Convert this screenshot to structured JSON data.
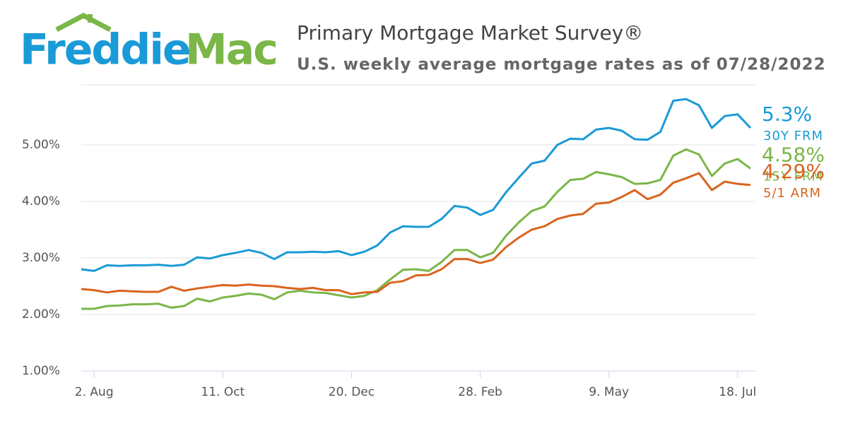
{
  "chart_data": {
    "type": "line",
    "logo": [
      "Freddie",
      "Mac"
    ],
    "title": "Primary Mortgage Market Survey®",
    "subtitle": "U.S. weekly average mortgage rates as of 07/28/2022",
    "categories": [
      null,
      "2. Aug",
      null,
      null,
      null,
      null,
      null,
      null,
      null,
      null,
      null,
      "11. Oct",
      null,
      null,
      null,
      null,
      null,
      null,
      null,
      null,
      null,
      "20. Dec",
      null,
      null,
      null,
      null,
      null,
      null,
      null,
      null,
      null,
      "28. Feb",
      null,
      null,
      null,
      null,
      null,
      null,
      null,
      null,
      null,
      "9. May",
      null,
      null,
      null,
      null,
      null,
      null,
      null,
      null,
      null,
      "18. Jul",
      null
    ],
    "ylim": [
      1,
      6
    ],
    "yticks": [
      {
        "value": 1,
        "label": "1.00%"
      },
      {
        "value": 2,
        "label": "2.00%"
      },
      {
        "value": 3,
        "label": "3.00%"
      },
      {
        "value": 4,
        "label": "4.00%"
      },
      {
        "value": 5,
        "label": "5.00%"
      }
    ],
    "grid": true,
    "series": [
      {
        "name": "30Y FRM",
        "color": "#1a9ad6",
        "values": [
          2.8,
          2.77,
          2.87,
          2.86,
          2.87,
          2.87,
          2.88,
          2.86,
          2.88,
          3.01,
          2.99,
          3.05,
          3.09,
          3.14,
          3.09,
          2.98,
          3.1,
          3.1,
          3.11,
          3.1,
          3.12,
          3.05,
          3.11,
          3.22,
          3.45,
          3.56,
          3.55,
          3.55,
          3.69,
          3.92,
          3.89,
          3.76,
          3.85,
          4.16,
          4.42,
          4.67,
          4.72,
          5.0,
          5.11,
          5.1,
          5.27,
          5.3,
          5.25,
          5.1,
          5.09,
          5.23,
          5.78,
          5.81,
          5.7,
          5.3,
          5.51,
          5.54,
          5.3
        ],
        "value_labels": [
          null,
          null,
          null,
          null,
          null,
          null,
          null,
          null,
          null,
          null,
          null,
          null,
          null,
          null,
          null,
          null,
          null,
          null,
          null,
          null,
          null,
          null,
          null,
          null,
          null,
          null,
          null,
          null,
          null,
          null,
          null,
          null,
          null,
          null,
          null,
          null,
          null,
          null,
          null,
          null,
          null,
          null,
          null,
          null,
          null,
          null,
          null,
          null,
          null,
          null,
          null,
          null,
          "5.3%"
        ]
      },
      {
        "name": "15Y FRM",
        "color": "#7ab648",
        "values": [
          2.1,
          2.1,
          2.15,
          2.16,
          2.18,
          2.18,
          2.19,
          2.12,
          2.15,
          2.28,
          2.23,
          2.3,
          2.33,
          2.37,
          2.35,
          2.27,
          2.39,
          2.42,
          2.39,
          2.38,
          2.34,
          2.3,
          2.33,
          2.43,
          2.62,
          2.79,
          2.8,
          2.77,
          2.93,
          3.14,
          3.14,
          3.01,
          3.09,
          3.39,
          3.63,
          3.83,
          3.91,
          4.17,
          4.38,
          4.4,
          4.52,
          4.48,
          4.43,
          4.31,
          4.32,
          4.38,
          4.81,
          4.92,
          4.83,
          4.45,
          4.67,
          4.75,
          4.58
        ],
        "value_labels": [
          null,
          null,
          null,
          null,
          null,
          null,
          null,
          null,
          null,
          null,
          null,
          null,
          null,
          null,
          null,
          null,
          null,
          null,
          null,
          null,
          null,
          null,
          null,
          null,
          null,
          null,
          null,
          null,
          null,
          null,
          null,
          null,
          null,
          null,
          null,
          null,
          null,
          null,
          null,
          null,
          null,
          null,
          null,
          null,
          null,
          null,
          null,
          null,
          null,
          null,
          null,
          null,
          "4.58%"
        ]
      },
      {
        "name": "5/1 ARM",
        "color": "#d9641e",
        "values": [
          2.45,
          2.43,
          2.39,
          2.42,
          2.41,
          2.4,
          2.4,
          2.49,
          2.42,
          2.46,
          2.49,
          2.52,
          2.51,
          2.53,
          2.51,
          2.5,
          2.47,
          2.45,
          2.47,
          2.43,
          2.43,
          2.36,
          2.39,
          2.4,
          2.56,
          2.59,
          2.69,
          2.7,
          2.8,
          2.98,
          2.98,
          2.91,
          2.97,
          3.19,
          3.36,
          3.5,
          3.56,
          3.69,
          3.75,
          3.78,
          3.96,
          3.98,
          4.08,
          4.2,
          4.04,
          4.12,
          4.33,
          4.41,
          4.5,
          4.2,
          4.35,
          4.31,
          4.29
        ],
        "value_labels": [
          null,
          null,
          null,
          null,
          null,
          null,
          null,
          null,
          null,
          null,
          null,
          null,
          null,
          null,
          null,
          null,
          null,
          null,
          null,
          null,
          null,
          null,
          null,
          null,
          null,
          null,
          null,
          null,
          null,
          null,
          null,
          null,
          null,
          null,
          null,
          null,
          null,
          null,
          null,
          null,
          null,
          null,
          null,
          null,
          null,
          null,
          null,
          null,
          null,
          null,
          null,
          null,
          "4.29%"
        ]
      }
    ]
  }
}
